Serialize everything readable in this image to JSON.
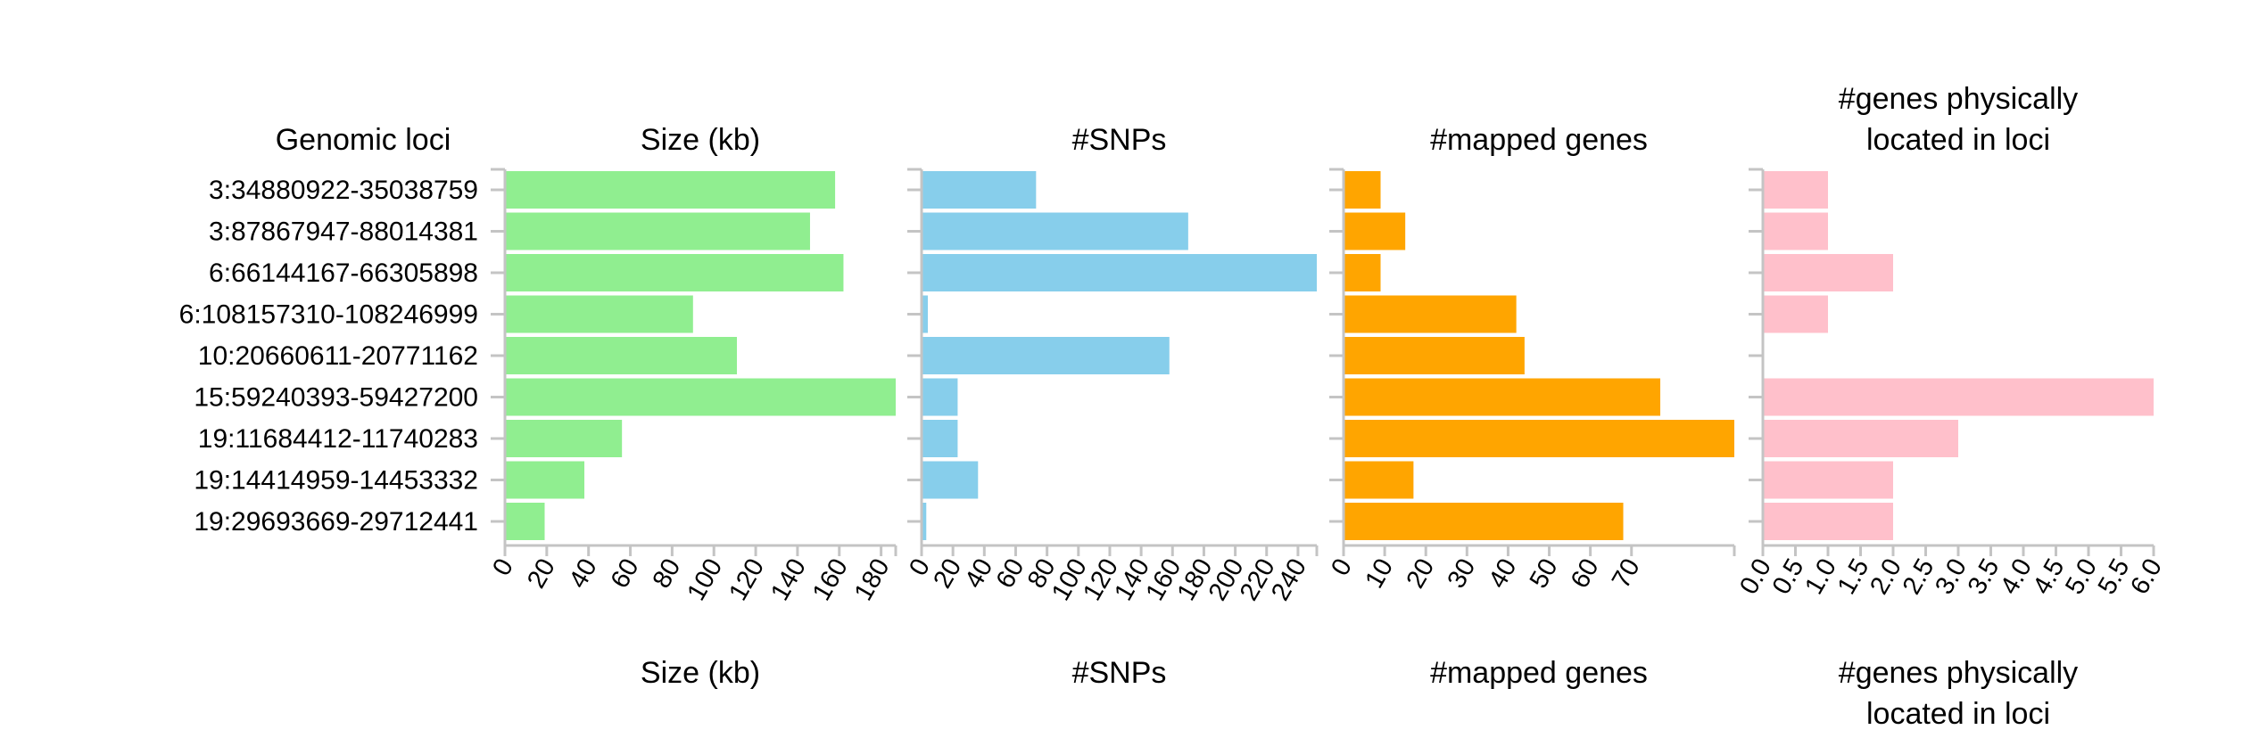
{
  "row_header": "Genomic loci",
  "loci": [
    "3:34880922-35038759",
    "3:87867947-88014381",
    "6:66144167-66305898",
    "6:108157310-108246999",
    "10:20660611-20771162",
    "15:59240393-59427200",
    "19:11684412-11740283",
    "19:14414959-14453332",
    "19:29693669-29712441"
  ],
  "chart_data": [
    {
      "type": "bar",
      "orientation": "horizontal",
      "title": "Size (kb)",
      "xlabel": "Size (kb)",
      "color": "#90ee90",
      "categories": [
        "3:34880922-35038759",
        "3:87867947-88014381",
        "6:66144167-66305898",
        "6:108157310-108246999",
        "10:20660611-20771162",
        "15:59240393-59427200",
        "19:11684412-11740283",
        "19:14414959-14453332",
        "19:29693669-29712441"
      ],
      "values": [
        158,
        146,
        162,
        90,
        111,
        187,
        56,
        38,
        19
      ],
      "xlim": [
        0,
        187
      ],
      "ticks": [
        0,
        20,
        40,
        60,
        80,
        100,
        120,
        140,
        160,
        180
      ],
      "tick_labels": [
        "0",
        "20",
        "40",
        "60",
        "80",
        "100",
        "120",
        "140",
        "160",
        "180"
      ]
    },
    {
      "type": "bar",
      "orientation": "horizontal",
      "title": "#SNPs",
      "xlabel": "#SNPs",
      "color": "#87ceeb",
      "categories": [
        "3:34880922-35038759",
        "3:87867947-88014381",
        "6:66144167-66305898",
        "6:108157310-108246999",
        "10:20660611-20771162",
        "15:59240393-59427200",
        "19:11684412-11740283",
        "19:14414959-14453332",
        "19:29693669-29712441"
      ],
      "values": [
        73,
        170,
        252,
        4,
        158,
        23,
        23,
        36,
        3
      ],
      "xlim": [
        0,
        252
      ],
      "ticks": [
        0,
        20,
        40,
        60,
        80,
        100,
        120,
        140,
        160,
        180,
        200,
        220,
        240
      ],
      "tick_labels": [
        "0",
        "20",
        "40",
        "60",
        "80",
        "100",
        "120",
        "140",
        "160",
        "180",
        "200",
        "220",
        "240"
      ]
    },
    {
      "type": "bar",
      "orientation": "horizontal",
      "title": "#mapped genes",
      "xlabel": "#mapped genes",
      "color": "#ffa500",
      "categories": [
        "3:34880922-35038759",
        "3:87867947-88014381",
        "6:66144167-66305898",
        "6:108157310-108246999",
        "10:20660611-20771162",
        "15:59240393-59427200",
        "19:11684412-11740283",
        "19:14414959-14453332",
        "19:29693669-29712441"
      ],
      "values": [
        9,
        15,
        9,
        42,
        44,
        77,
        95,
        17,
        68
      ],
      "xlim": [
        0,
        95
      ],
      "ticks": [
        0,
        10,
        20,
        30,
        40,
        50,
        60,
        70
      ],
      "tick_labels": [
        "0",
        "10",
        "20",
        "30",
        "40",
        "50",
        "60",
        "70"
      ]
    },
    {
      "type": "bar",
      "orientation": "horizontal",
      "title": "#genes physically located in loci",
      "xlabel": "#genes physically located in loci",
      "color": "#ffc0cb",
      "categories": [
        "3:34880922-35038759",
        "3:87867947-88014381",
        "6:66144167-66305898",
        "6:108157310-108246999",
        "10:20660611-20771162",
        "15:59240393-59427200",
        "19:11684412-11740283",
        "19:14414959-14453332",
        "19:29693669-29712441"
      ],
      "values": [
        1,
        1,
        2,
        1,
        0,
        6,
        3,
        2,
        2
      ],
      "xlim": [
        0,
        6
      ],
      "ticks": [
        0,
        0.5,
        1.0,
        1.5,
        2.0,
        2.5,
        3.0,
        3.5,
        4.0,
        4.5,
        5.0,
        5.5,
        6.0
      ],
      "tick_labels": [
        "0.0",
        "0.5",
        "1.0",
        "1.5",
        "2.0",
        "2.5",
        "3.0",
        "3.5",
        "4.0",
        "4.5",
        "5.0",
        "5.5",
        "6.0"
      ]
    }
  ]
}
